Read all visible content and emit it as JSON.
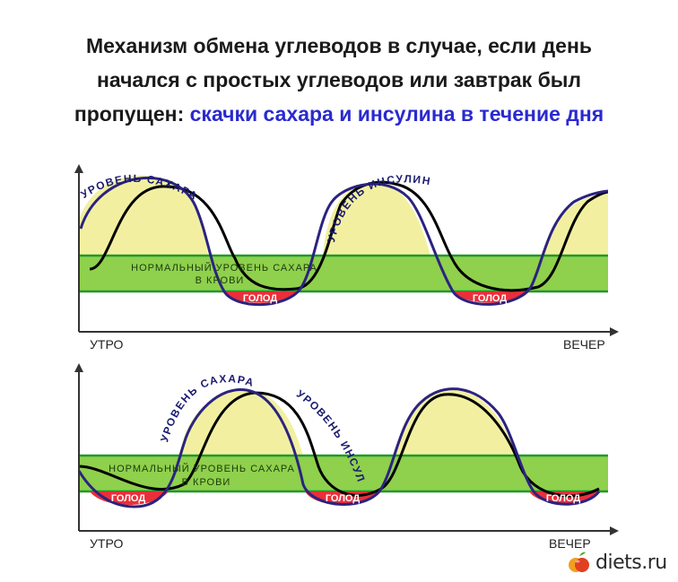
{
  "title": {
    "line1": "Механизм обмена углеводов в случае, если день",
    "line2": "начался с простых углеводов или завтрак был",
    "line3_lead": "пропущен:",
    "line3_highlight": "скачки сахара и инсулина в течение дня"
  },
  "top_chart": {
    "label_sugar": "УРОВЕНЬ САХАРА",
    "label_insulin": "УРОВЕНЬ ИНСУЛИНА",
    "label_normal_line1": "НОРМАЛЬНЫЙ УРОВЕНЬ САХАРА",
    "label_normal_line2": "В КРОВИ",
    "label_hunger": "ГОЛОД",
    "label_start": "УТРО",
    "label_end": "ВЕЧЕР"
  },
  "bottom_chart": {
    "label_sugar": "УРОВЕНЬ САХАРА",
    "label_insulin": "УРОВЕНЬ ИНСУЛИНА",
    "label_normal_line1": "НОРМАЛЬНЫЙ УРОВЕНЬ САХАРА",
    "label_normal_line2": "В КРОВИ",
    "label_hunger": "ГОЛОД",
    "label_start": "УТРО",
    "label_end": "ВЕЧЕР"
  },
  "watermark": {
    "text": "diets.ru"
  },
  "colors": {
    "sugar_curve": "#2b2380",
    "insulin_curve": "#000000",
    "peak_fill": "#f2f0a0",
    "normal_band": "#8fd04c",
    "normal_band_edge": "#1e9a2a",
    "hunger_fill": "#e8303a"
  }
}
